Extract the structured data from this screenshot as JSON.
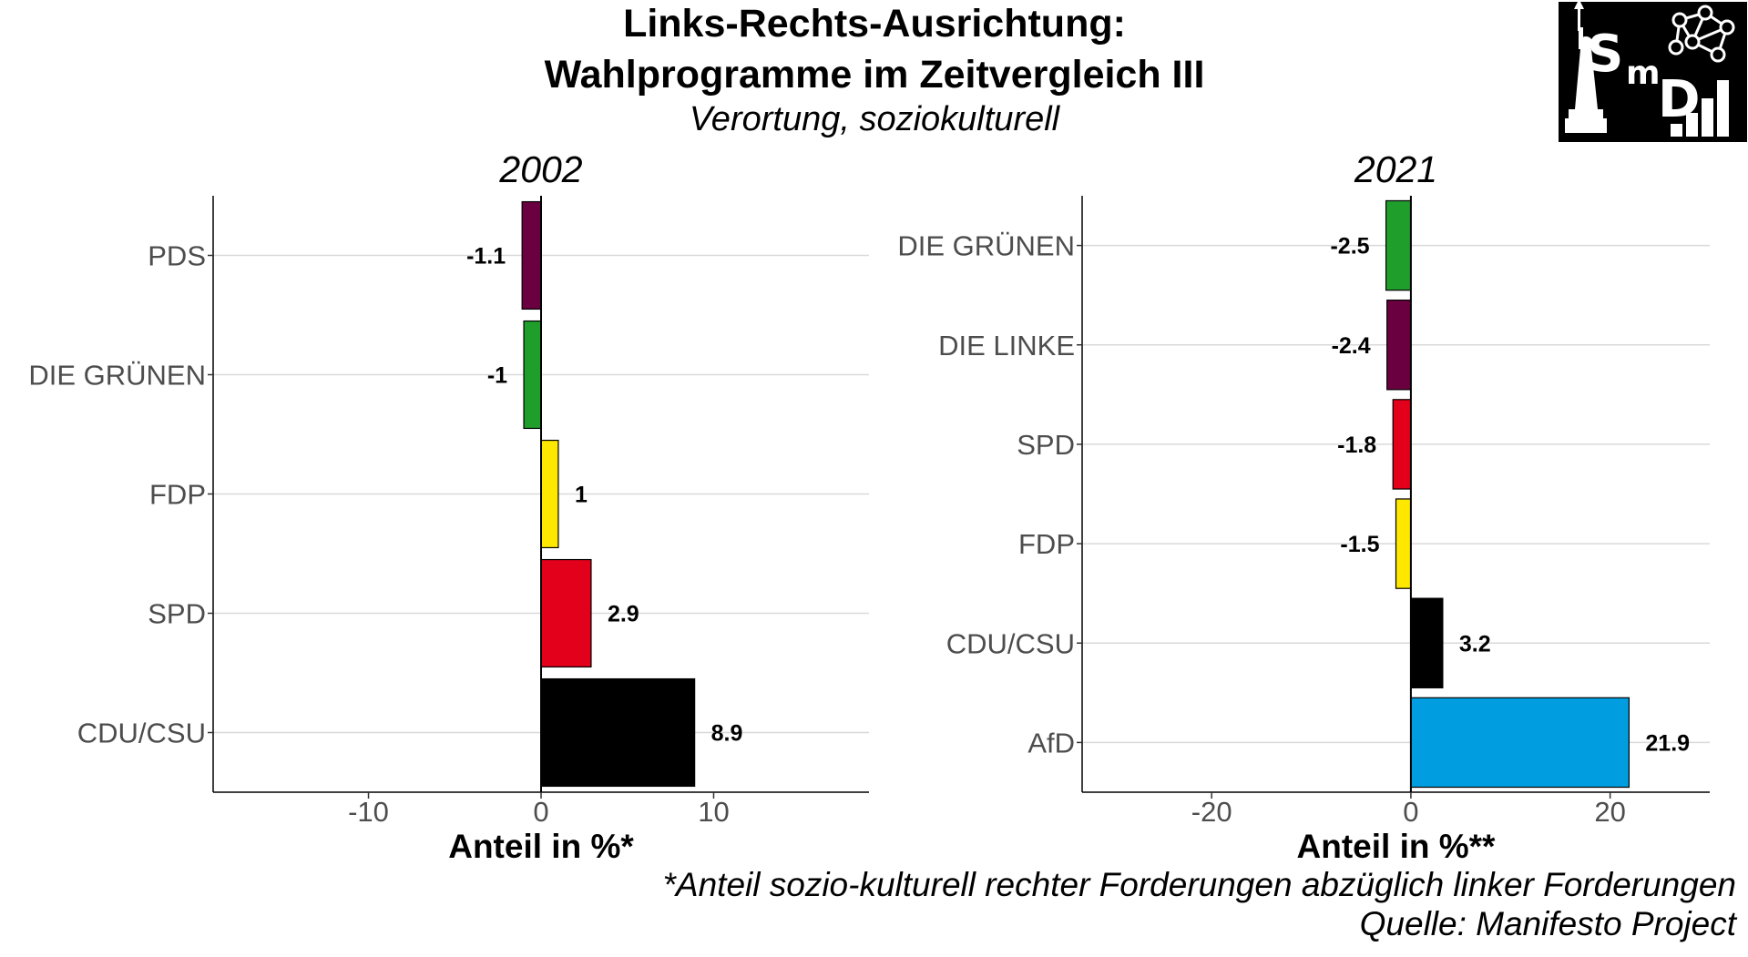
{
  "title_line1": "Links-Rechts-Ausrichtung:",
  "title_line2": "Wahlprogramme im Zeitvergleich III",
  "subtitle": "Verortung, soziokulturell",
  "footnote": "*Anteil sozio-kulturell rechter Forderungen abzüglich linker Forderungen",
  "source": "Quelle: Manifesto Project",
  "logo": {
    "text": "SmD",
    "icon": "statue-of-liberty-network-logo"
  },
  "chart_data": [
    {
      "type": "bar",
      "orientation": "horizontal",
      "title": "2002",
      "xlabel": "Anteil in %*",
      "categories": [
        "PDS",
        "DIE GRÜNEN",
        "FDP",
        "SPD",
        "CDU/CSU"
      ],
      "values": [
        -1.1,
        -1,
        1,
        2.9,
        8.9
      ],
      "labels": [
        "-1.1",
        "-1",
        "1",
        "2.9",
        "8.9"
      ],
      "colors": [
        "#6b0040",
        "#1f9e2c",
        "#ffe800",
        "#e2001a",
        "#000000"
      ],
      "xlim": [
        -19,
        19
      ],
      "xticks": [
        -10,
        0,
        10
      ],
      "grid": "horizontal"
    },
    {
      "type": "bar",
      "orientation": "horizontal",
      "title": "2021",
      "xlabel": "Anteil in %**",
      "categories": [
        "DIE GRÜNEN",
        "DIE LINKE",
        "SPD",
        "FDP",
        "CDU/CSU",
        "AfD"
      ],
      "values": [
        -2.5,
        -2.4,
        -1.8,
        -1.5,
        3.2,
        21.9
      ],
      "labels": [
        "-2.5",
        "-2.4",
        "-1.8",
        "-1.5",
        "3.2",
        "21.9"
      ],
      "colors": [
        "#1f9e2c",
        "#6b0040",
        "#e2001a",
        "#ffe800",
        "#000000",
        "#009ee0"
      ],
      "xlim": [
        -33,
        30
      ],
      "xticks": [
        -20,
        0,
        20
      ],
      "grid": "horizontal"
    }
  ]
}
